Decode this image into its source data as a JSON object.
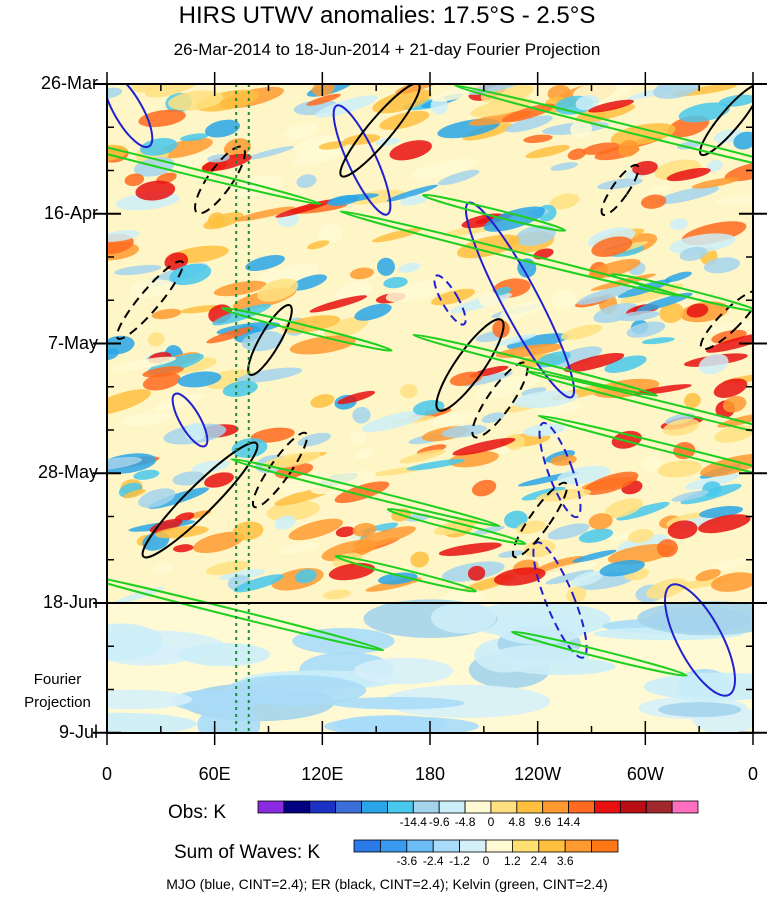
{
  "chart_data": {
    "type": "heatmap",
    "title": "HIRS UTWV anomalies: 17.5°S - 2.5°S",
    "subtitle": "26-Mar-2014 to 18-Jun-2014 + 21-day Fourier Projection",
    "y_axis": {
      "ticks": [
        "26-Mar",
        "16-Apr",
        "7-May",
        "28-May",
        "18-Jun",
        "9-Jul"
      ],
      "projection_label": "Fourier\nProjection",
      "projection_start": "18-Jun"
    },
    "x_axis": {
      "ticks": [
        "0",
        "60E",
        "120E",
        "180",
        "120W",
        "60W",
        "0"
      ],
      "range_deg_east": [
        0,
        360
      ]
    },
    "vertical_lines_lon_deg_east": [
      72,
      79
    ],
    "obs_colorbar": {
      "name": "Obs: K",
      "labels": [
        "-14.4",
        "-9.6",
        "-4.8",
        "0",
        "4.8",
        "9.6",
        "14.4"
      ],
      "colors": [
        "#8a2be2",
        "#000080",
        "#1c32c4",
        "#3a6fd8",
        "#2aa6e8",
        "#48c8ec",
        "#a4d4ec",
        "#cceef8",
        "#fffad4",
        "#ffe080",
        "#ffc040",
        "#ff9a30",
        "#ff6a20",
        "#e81010",
        "#b80e14",
        "#a0282c",
        "#ff6ec0"
      ]
    },
    "waves_colorbar": {
      "name": "Sum of Waves: K",
      "labels": [
        "-3.6",
        "-2.4",
        "-1.2",
        "0",
        "1.2",
        "2.4",
        "3.6"
      ],
      "colors": [
        "#2a7ae8",
        "#3a9af0",
        "#6cbcf6",
        "#a8dcf8",
        "#d6f0fa",
        "#fffad4",
        "#ffe070",
        "#ffc040",
        "#ff9a30",
        "#ff7818"
      ]
    },
    "legend_footer": "MJO (blue, CINT=2.4); ER (black, CINT=2.4); Kelvin (green, CINT=2.4)",
    "contour_series": [
      {
        "name": "MJO",
        "color": "#2020d0"
      },
      {
        "name": "ER",
        "color": "#000000"
      },
      {
        "name": "Kelvin",
        "color": "#20d020"
      }
    ]
  }
}
